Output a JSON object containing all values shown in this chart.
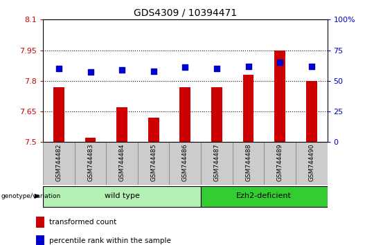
{
  "title": "GDS4309 / 10394471",
  "samples": [
    "GSM744482",
    "GSM744483",
    "GSM744484",
    "GSM744485",
    "GSM744486",
    "GSM744487",
    "GSM744488",
    "GSM744489",
    "GSM744490"
  ],
  "transformed_counts": [
    7.77,
    7.52,
    7.67,
    7.62,
    7.77,
    7.77,
    7.83,
    7.95,
    7.8
  ],
  "percentile_ranks": [
    60,
    57,
    59,
    58,
    61,
    60,
    62,
    65,
    62
  ],
  "ylim_left": [
    7.5,
    8.1
  ],
  "ylim_right": [
    0,
    100
  ],
  "yticks_left": [
    7.5,
    7.65,
    7.8,
    7.95,
    8.1
  ],
  "yticks_right": [
    0,
    25,
    50,
    75,
    100
  ],
  "ytick_labels_left": [
    "7.5",
    "7.65",
    "7.8",
    "7.95",
    "8.1"
  ],
  "ytick_labels_right": [
    "0",
    "25",
    "50",
    "75",
    "100%"
  ],
  "groups": [
    {
      "label": "wild type",
      "indices": [
        0,
        1,
        2,
        3,
        4
      ],
      "color": "#b3f0b3"
    },
    {
      "label": "Ezh2-deficient",
      "indices": [
        5,
        6,
        7,
        8
      ],
      "color": "#33cc33"
    }
  ],
  "bar_color": "#CC0000",
  "dot_color": "#0000CC",
  "bar_width": 0.35,
  "dot_size": 35,
  "legend_items": [
    {
      "label": "transformed count",
      "color": "#CC0000"
    },
    {
      "label": "percentile rank within the sample",
      "color": "#0000CC"
    }
  ],
  "genotype_label": "genotype/variation",
  "left_axis_color": "#CC0000",
  "right_axis_color": "#0000CC",
  "sample_box_color": "#CCCCCC",
  "sample_box_edge": "#888888"
}
